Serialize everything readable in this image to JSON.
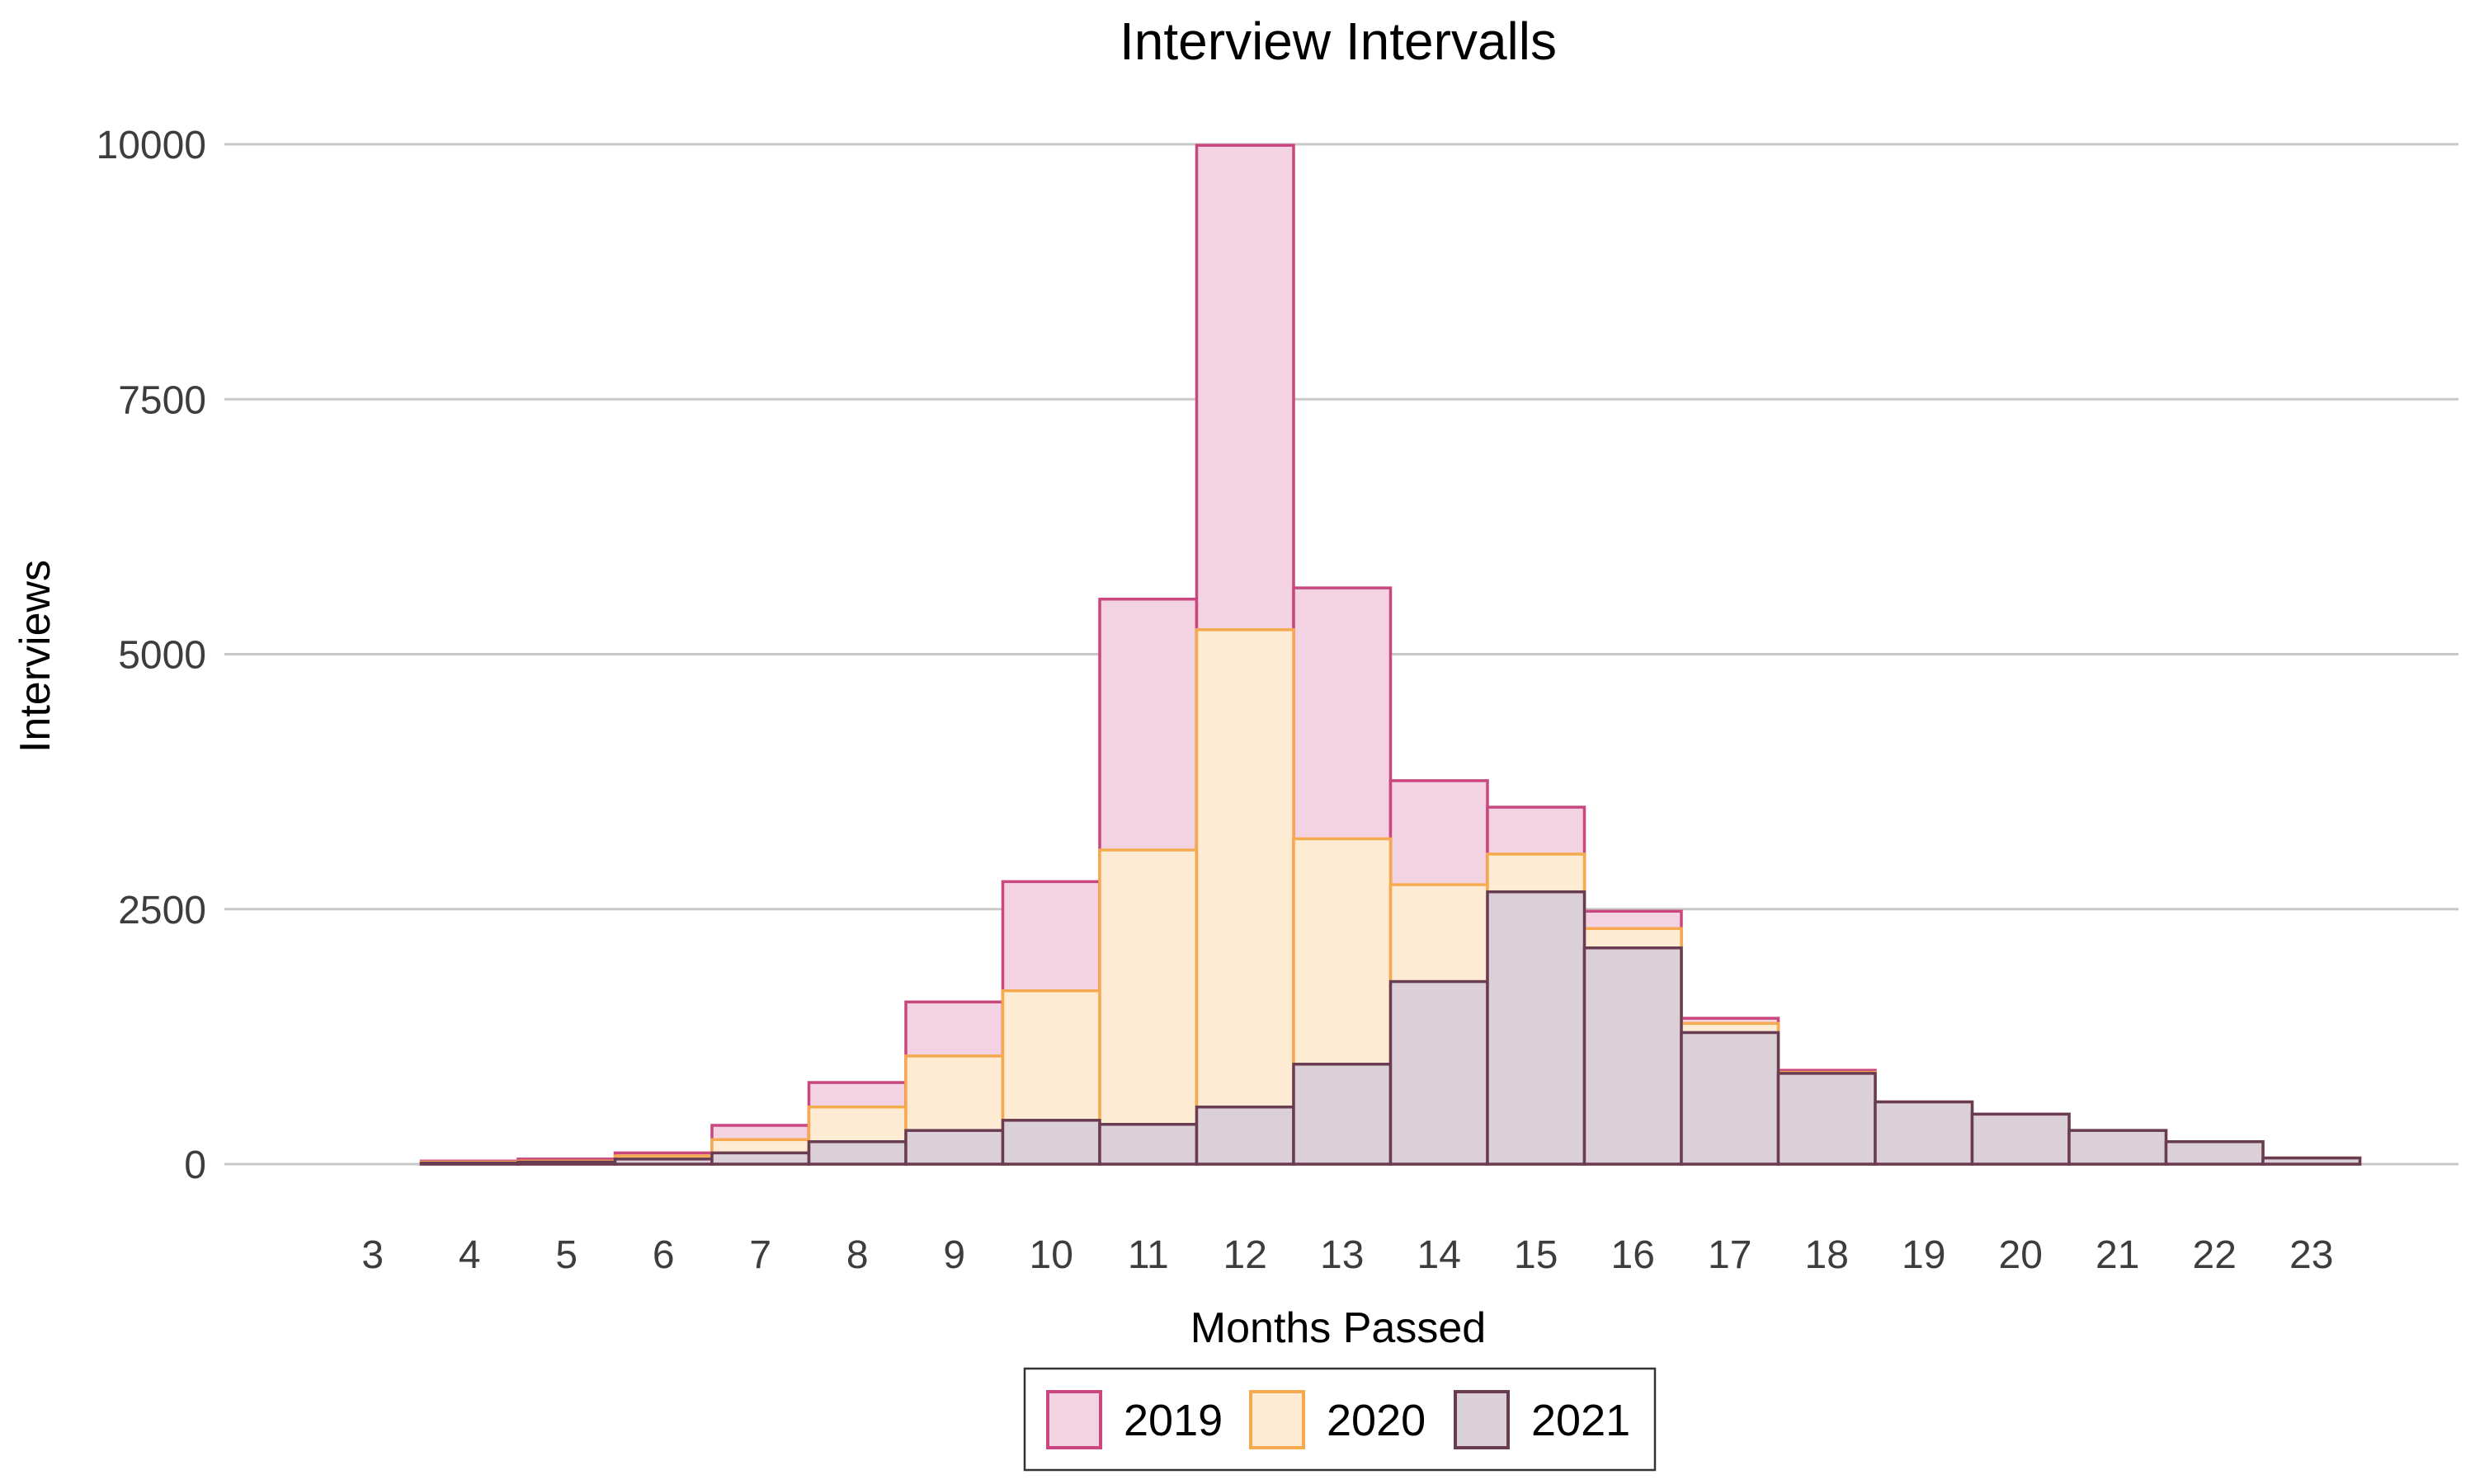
{
  "chart_data": {
    "type": "bar",
    "title": "Interview Intervalls",
    "xlabel": "Months Passed",
    "ylabel": "Interviews",
    "ylim": [
      0,
      10000
    ],
    "yticks": [
      0,
      2500,
      5000,
      7500,
      10000
    ],
    "grid": "horizontal",
    "legend_position": "bottom",
    "overlay": true,
    "categories": [
      "3",
      "4",
      "5",
      "6",
      "7",
      "8",
      "9",
      "10",
      "11",
      "12",
      "13",
      "14",
      "15",
      "16",
      "17",
      "18",
      "19",
      "20",
      "21",
      "22",
      "23"
    ],
    "series": [
      {
        "name": "2019",
        "fill": "#f3d3e2",
        "stroke": "#c9467e",
        "values": [
          0,
          30,
          50,
          110,
          380,
          800,
          1590,
          2770,
          5540,
          9990,
          5650,
          3760,
          3500,
          2480,
          1430,
          920,
          610,
          490,
          330,
          220,
          60
        ]
      },
      {
        "name": "2020",
        "fill": "#fdebd3",
        "stroke": "#f5aa50",
        "values": [
          0,
          20,
          30,
          80,
          240,
          560,
          1060,
          1700,
          3080,
          5240,
          3190,
          2740,
          3040,
          2310,
          1380,
          900,
          600,
          480,
          330,
          220,
          60
        ]
      },
      {
        "name": "2021",
        "fill": "#dcd0d7",
        "stroke": "#6a3c52",
        "values": [
          0,
          10,
          20,
          50,
          110,
          220,
          330,
          430,
          390,
          560,
          980,
          1790,
          2670,
          2120,
          1290,
          890,
          610,
          490,
          330,
          220,
          60
        ]
      }
    ]
  }
}
